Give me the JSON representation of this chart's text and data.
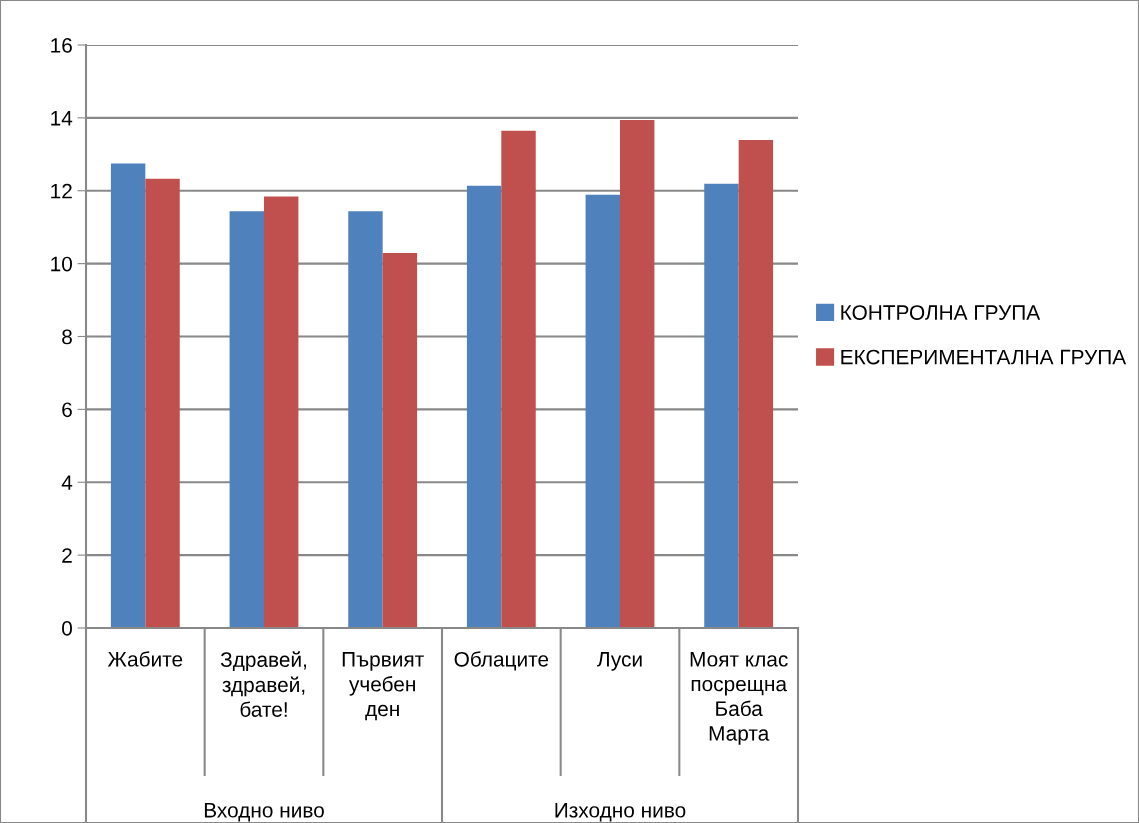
{
  "chart_data": {
    "type": "bar",
    "categories": [
      "Жабите",
      "Здравей,\nздравей,\nбате!",
      "Първият\nучебен\nден",
      "Облаците",
      "Луси",
      "Моят клас\nпосрещна\nБаба\nМарта"
    ],
    "series": [
      {
        "name": "КОНТРОЛНА ГРУПА",
        "color": "#4f81bd",
        "values": [
          12.75,
          11.44,
          11.44,
          12.14,
          11.89,
          12.19
        ]
      },
      {
        "name": "ЕКСПЕРИМЕНТАЛНА ГРУПА",
        "color": "#c0504d",
        "values": [
          12.33,
          11.84,
          10.29,
          13.65,
          13.94,
          13.39
        ]
      }
    ],
    "annotations": [
      "Входно ниво",
      "Изходно ниво"
    ],
    "ylim": [
      0,
      16
    ],
    "yticks": [
      0,
      2,
      4,
      6,
      8,
      10,
      12,
      14,
      16
    ],
    "grid": "y",
    "legend": "right"
  }
}
